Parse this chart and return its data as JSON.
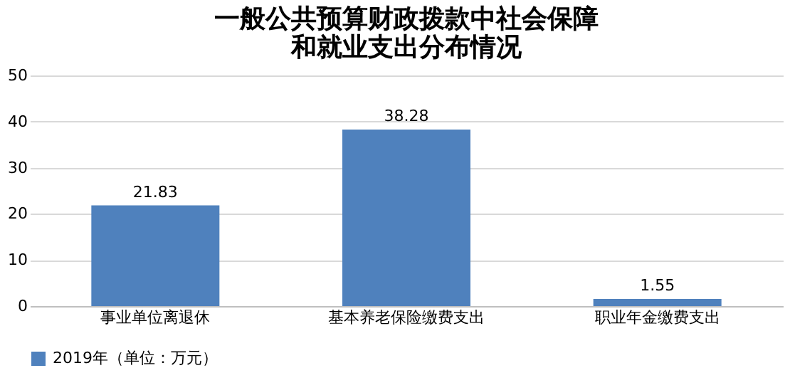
{
  "chart_data": {
    "type": "bar",
    "title": [
      "一般公共预算财政拨款中社会保障",
      "和就业支出分布情况"
    ],
    "categories": [
      "事业单位离退休",
      "基本养老保险缴费支出",
      "职业年金缴费支出"
    ],
    "series": [
      {
        "name": "2019年（单位：万元）",
        "color": "#4f81bd",
        "values": [
          21.83,
          38.28,
          1.55
        ]
      }
    ],
    "ylim": [
      0,
      50
    ],
    "yticks": [
      0,
      10,
      20,
      30,
      40,
      50
    ],
    "grid": "y",
    "legend": "bottom",
    "data_labels": true
  }
}
